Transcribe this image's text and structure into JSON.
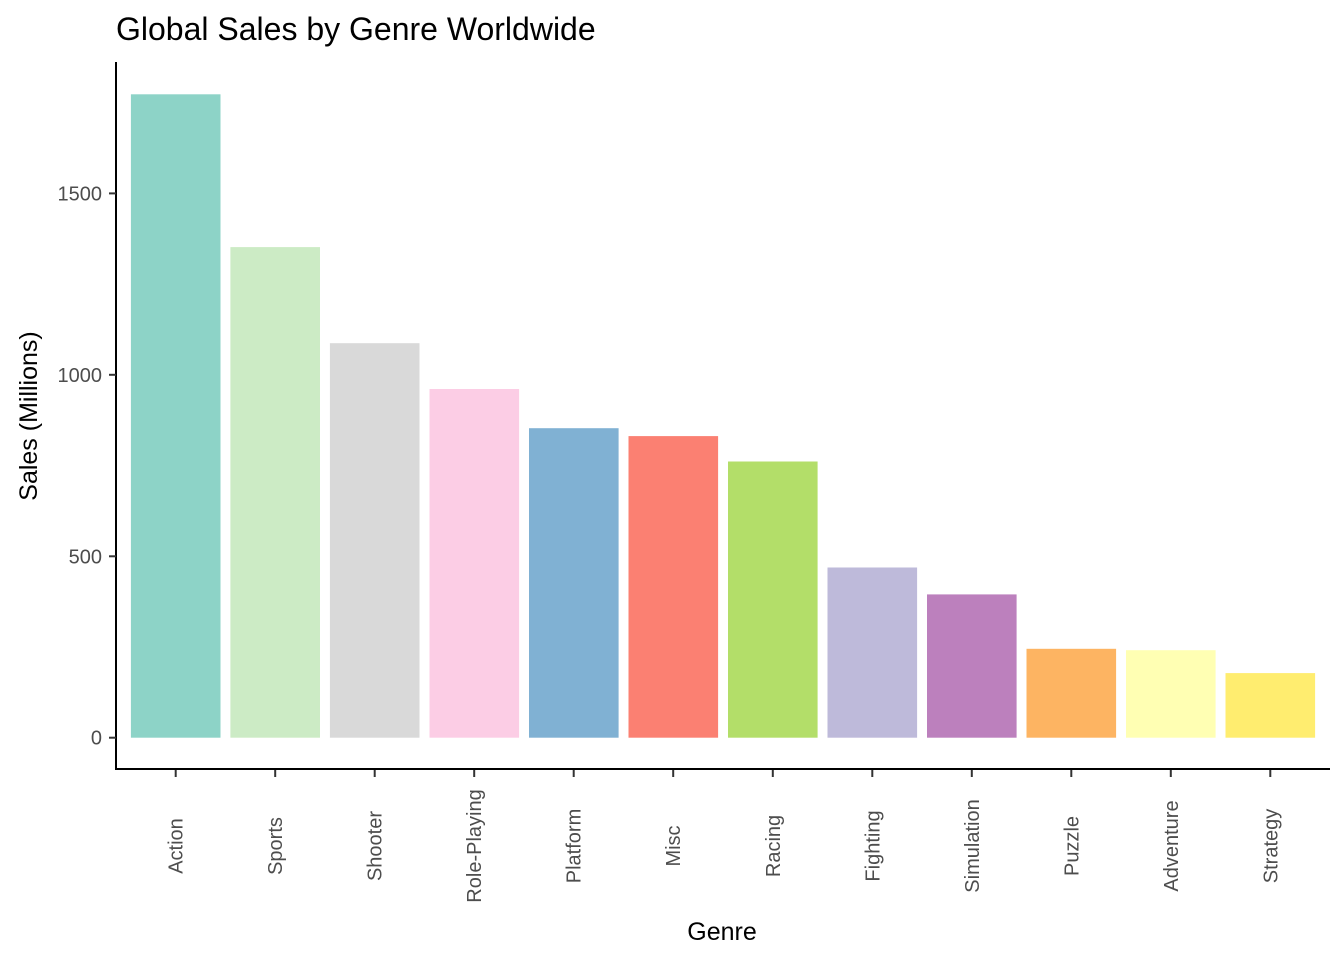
{
  "chart_data": {
    "type": "bar",
    "title": "Global Sales by Genre Worldwide",
    "xlabel": "Genre",
    "ylabel": "Sales (Millions)",
    "categories": [
      "Action",
      "Sports",
      "Shooter",
      "Role-Playing",
      "Platform",
      "Misc",
      "Racing",
      "Fighting",
      "Simulation",
      "Puzzle",
      "Adventure",
      "Strategy"
    ],
    "values": [
      1773,
      1352,
      1087,
      961,
      853,
      831,
      761,
      469,
      395,
      245,
      241,
      178
    ],
    "colors": [
      "#8DD3C7",
      "#CCEBC5",
      "#D9D9D9",
      "#FCCDE5",
      "#80B1D3",
      "#FB8072",
      "#B3DE69",
      "#BEBADA",
      "#BC80BD",
      "#FDB462",
      "#FFFFB3",
      "#FFED6F"
    ],
    "yticks": [
      0,
      500,
      1000,
      1500
    ],
    "ylim": [
      -89,
      1862
    ],
    "grid": false,
    "legend": "none"
  }
}
